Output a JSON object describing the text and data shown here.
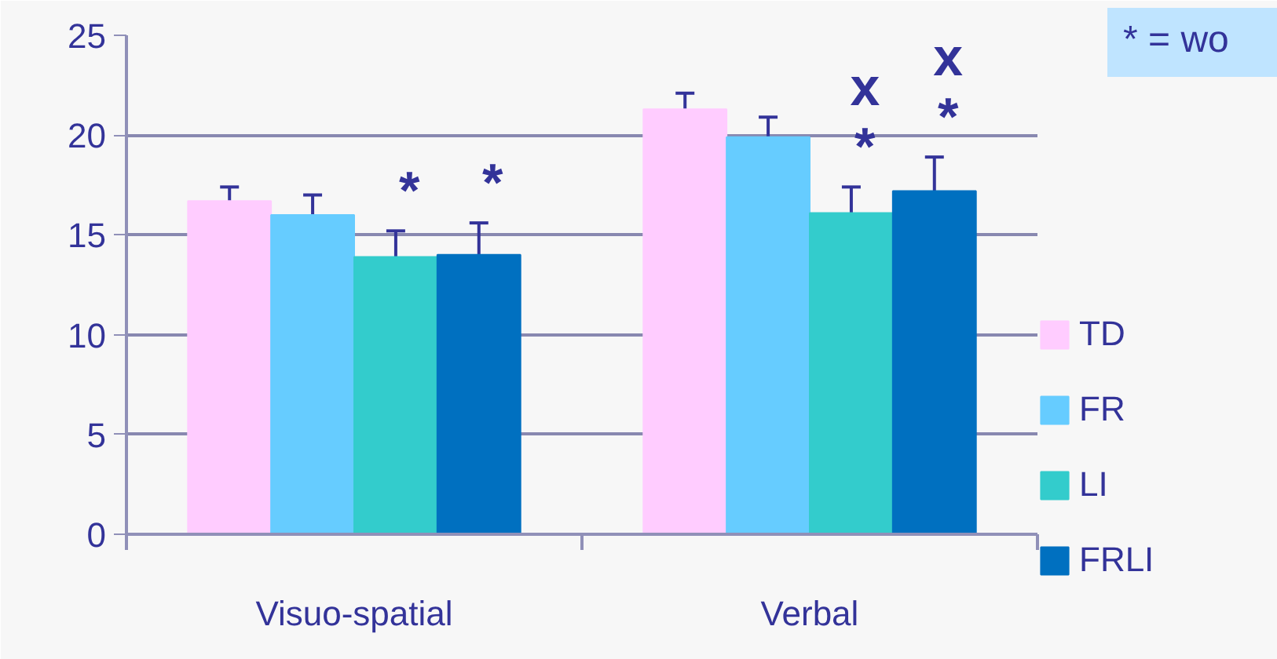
{
  "chart_data": {
    "type": "bar",
    "categories": [
      "Visuo-spatial",
      "Verbal"
    ],
    "series": [
      {
        "name": "TD",
        "color": "#ffccff",
        "values": [
          16.7,
          21.3
        ],
        "errors": [
          0.7,
          0.8
        ]
      },
      {
        "name": "FR",
        "color": "#66ccff",
        "values": [
          16.0,
          19.9
        ],
        "errors": [
          1.0,
          1.0
        ]
      },
      {
        "name": "LI",
        "color": "#33cccc",
        "values": [
          13.9,
          16.1
        ],
        "errors": [
          1.3,
          1.3
        ],
        "value_labels": [
          "*",
          "x\n*"
        ]
      },
      {
        "name": "FRLI",
        "color": "#0070c0",
        "values": [
          14.0,
          17.2
        ],
        "errors": [
          1.6,
          1.7
        ],
        "value_labels": [
          "*",
          "x\n*"
        ]
      }
    ],
    "ylim": [
      0,
      25
    ],
    "yticks": [
      0,
      5,
      10,
      15,
      20,
      25
    ],
    "grid": "y",
    "legend": "right",
    "annotations": [
      "* = wo"
    ]
  }
}
